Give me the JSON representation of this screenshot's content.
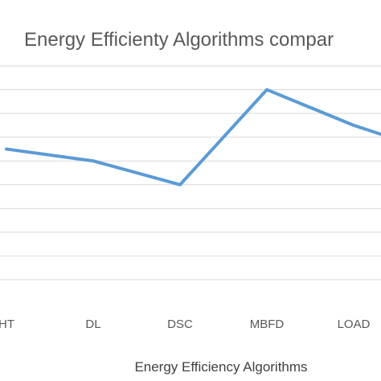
{
  "chart_data": {
    "type": "line",
    "title": "Energy Efficienty Algorithms compar",
    "xlabel": "Energy Efficiency Algorithms",
    "ylabel": "",
    "categories": [
      "HT",
      "DL",
      "DSC",
      "MBFD",
      "LOAD",
      ""
    ],
    "series": [
      {
        "values": [
          5.5,
          5.0,
          4.0,
          8.0,
          6.5,
          5.3
        ]
      }
    ],
    "ylim": [
      0,
      9
    ],
    "grid": true,
    "colors": {
      "series": "#5b9bd5",
      "grid": "#d9d9d9",
      "text": "#595959"
    }
  }
}
